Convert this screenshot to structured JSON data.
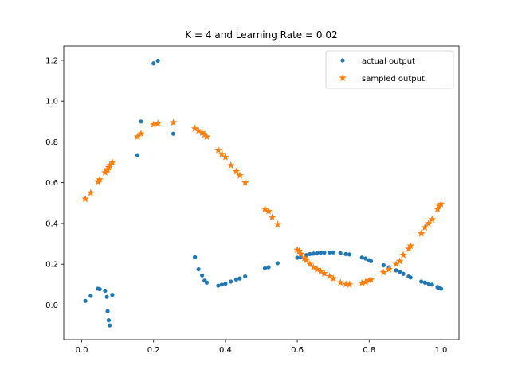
{
  "chart_data": {
    "type": "scatter",
    "title": "K = 4 and Learning Rate = 0.02",
    "xlabel": "",
    "ylabel": "",
    "xlim": [
      -0.05,
      1.05
    ],
    "ylim": [
      -0.17,
      1.27
    ],
    "xticks": [
      0.0,
      0.2,
      0.4,
      0.6,
      0.8,
      1.0
    ],
    "xtick_labels": [
      "0.0",
      "0.2",
      "0.4",
      "0.6",
      "0.8",
      "1.0"
    ],
    "yticks": [
      0.0,
      0.2,
      0.4,
      0.6,
      0.8,
      1.0,
      1.2
    ],
    "ytick_labels": [
      "0.0",
      "0.2",
      "0.4",
      "0.6",
      "0.8",
      "1.0",
      "1.2"
    ],
    "grid": false,
    "legend_position": "top-right",
    "series": [
      {
        "name": "actual output",
        "marker": "dot",
        "color": "#1f77b4",
        "points": [
          [
            0.01,
            0.02
          ],
          [
            0.025,
            0.045
          ],
          [
            0.045,
            0.08
          ],
          [
            0.05,
            0.078
          ],
          [
            0.065,
            0.07
          ],
          [
            0.07,
            0.04
          ],
          [
            0.072,
            -0.03
          ],
          [
            0.075,
            -0.075
          ],
          [
            0.078,
            -0.1
          ],
          [
            0.085,
            0.05
          ],
          [
            0.155,
            0.735
          ],
          [
            0.165,
            0.9
          ],
          [
            0.2,
            1.185
          ],
          [
            0.212,
            1.198
          ],
          [
            0.255,
            0.84
          ],
          [
            0.315,
            0.235
          ],
          [
            0.325,
            0.175
          ],
          [
            0.335,
            0.145
          ],
          [
            0.342,
            0.12
          ],
          [
            0.348,
            0.11
          ],
          [
            0.38,
            0.095
          ],
          [
            0.39,
            0.1
          ],
          [
            0.4,
            0.105
          ],
          [
            0.415,
            0.115
          ],
          [
            0.43,
            0.125
          ],
          [
            0.44,
            0.13
          ],
          [
            0.455,
            0.14
          ],
          [
            0.51,
            0.18
          ],
          [
            0.52,
            0.185
          ],
          [
            0.545,
            0.205
          ],
          [
            0.6,
            0.232
          ],
          [
            0.61,
            0.235
          ],
          [
            0.625,
            0.245
          ],
          [
            0.635,
            0.25
          ],
          [
            0.645,
            0.252
          ],
          [
            0.655,
            0.255
          ],
          [
            0.665,
            0.256
          ],
          [
            0.675,
            0.257
          ],
          [
            0.69,
            0.258
          ],
          [
            0.7,
            0.258
          ],
          [
            0.72,
            0.254
          ],
          [
            0.735,
            0.25
          ],
          [
            0.745,
            0.248
          ],
          [
            0.78,
            0.233
          ],
          [
            0.79,
            0.228
          ],
          [
            0.8,
            0.22
          ],
          [
            0.805,
            0.215
          ],
          [
            0.84,
            0.195
          ],
          [
            0.855,
            0.185
          ],
          [
            0.875,
            0.17
          ],
          [
            0.885,
            0.163
          ],
          [
            0.895,
            0.153
          ],
          [
            0.91,
            0.14
          ],
          [
            0.915,
            0.135
          ],
          [
            0.945,
            0.115
          ],
          [
            0.955,
            0.11
          ],
          [
            0.965,
            0.105
          ],
          [
            0.975,
            0.1
          ],
          [
            0.99,
            0.088
          ],
          [
            0.995,
            0.083
          ],
          [
            1.0,
            0.08
          ]
        ]
      },
      {
        "name": "sampled output",
        "marker": "star",
        "color": "#ff7f0e",
        "points": [
          [
            0.01,
            0.52
          ],
          [
            0.025,
            0.55
          ],
          [
            0.045,
            0.605
          ],
          [
            0.05,
            0.615
          ],
          [
            0.065,
            0.65
          ],
          [
            0.07,
            0.66
          ],
          [
            0.072,
            0.665
          ],
          [
            0.075,
            0.675
          ],
          [
            0.078,
            0.685
          ],
          [
            0.085,
            0.7
          ],
          [
            0.155,
            0.825
          ],
          [
            0.165,
            0.84
          ],
          [
            0.2,
            0.885
          ],
          [
            0.212,
            0.89
          ],
          [
            0.255,
            0.895
          ],
          [
            0.315,
            0.865
          ],
          [
            0.325,
            0.855
          ],
          [
            0.335,
            0.845
          ],
          [
            0.342,
            0.835
          ],
          [
            0.348,
            0.825
          ],
          [
            0.38,
            0.76
          ],
          [
            0.39,
            0.74
          ],
          [
            0.4,
            0.725
          ],
          [
            0.415,
            0.685
          ],
          [
            0.43,
            0.655
          ],
          [
            0.44,
            0.635
          ],
          [
            0.455,
            0.6
          ],
          [
            0.51,
            0.47
          ],
          [
            0.52,
            0.46
          ],
          [
            0.53,
            0.43
          ],
          [
            0.545,
            0.395
          ],
          [
            0.6,
            0.27
          ],
          [
            0.605,
            0.265
          ],
          [
            0.61,
            0.25
          ],
          [
            0.62,
            0.23
          ],
          [
            0.625,
            0.22
          ],
          [
            0.635,
            0.2
          ],
          [
            0.645,
            0.185
          ],
          [
            0.655,
            0.175
          ],
          [
            0.665,
            0.165
          ],
          [
            0.675,
            0.155
          ],
          [
            0.69,
            0.14
          ],
          [
            0.7,
            0.13
          ],
          [
            0.72,
            0.11
          ],
          [
            0.735,
            0.102
          ],
          [
            0.745,
            0.1
          ],
          [
            0.78,
            0.108
          ],
          [
            0.79,
            0.113
          ],
          [
            0.8,
            0.12
          ],
          [
            0.805,
            0.125
          ],
          [
            0.84,
            0.16
          ],
          [
            0.855,
            0.175
          ],
          [
            0.875,
            0.2
          ],
          [
            0.885,
            0.215
          ],
          [
            0.895,
            0.245
          ],
          [
            0.91,
            0.275
          ],
          [
            0.915,
            0.29
          ],
          [
            0.945,
            0.35
          ],
          [
            0.955,
            0.38
          ],
          [
            0.965,
            0.4
          ],
          [
            0.975,
            0.42
          ],
          [
            0.99,
            0.47
          ],
          [
            0.995,
            0.485
          ],
          [
            1.0,
            0.495
          ]
        ]
      }
    ]
  }
}
